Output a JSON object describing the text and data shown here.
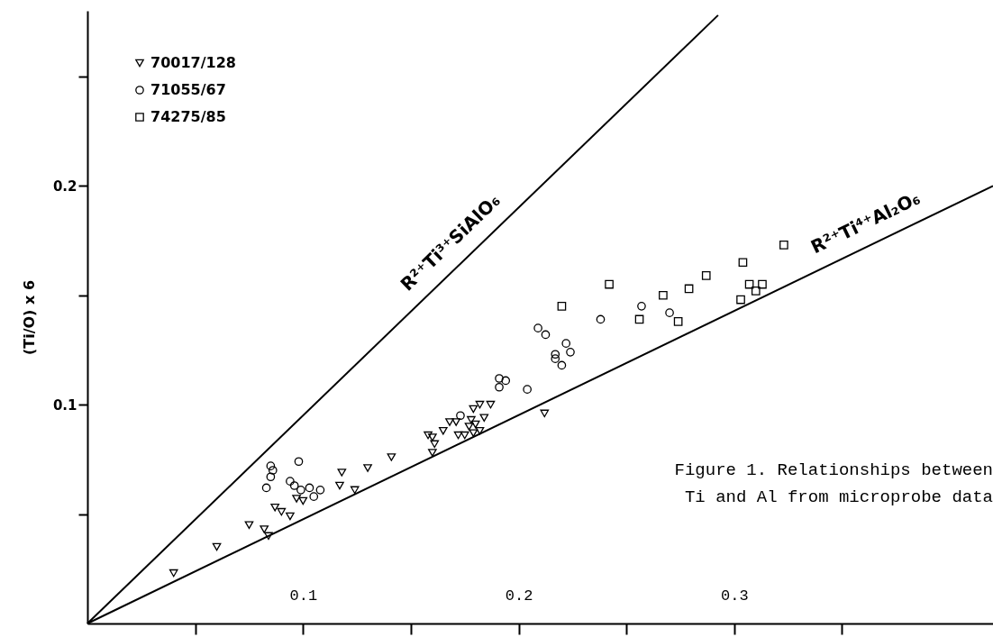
{
  "chart_data": {
    "type": "scatter",
    "ylabel": "(Ti/O) x 6",
    "xlim": [
      0,
      0.42
    ],
    "ylim": [
      0,
      0.28
    ],
    "xticks": [
      {
        "value": 0.05,
        "label": null
      },
      0.1,
      {
        "value": 0.15,
        "label": null
      },
      0.2,
      {
        "value": 0.25,
        "label": null
      },
      0.3,
      {
        "value": 0.35,
        "label": null
      }
    ],
    "yticks": [
      {
        "value": 0.05,
        "label": null
      },
      0.1,
      {
        "value": 0.15,
        "label": null
      },
      0.2,
      {
        "value": 0.25,
        "label": null
      }
    ],
    "legend": "top left",
    "grid": false,
    "series": [
      {
        "name": "70017/128",
        "color": "#000000",
        "marker": "triangle",
        "x": [
          0.04,
          0.06,
          0.075,
          0.082,
          0.084,
          0.087,
          0.09,
          0.094,
          0.097,
          0.1,
          0.117,
          0.124,
          0.118,
          0.13,
          0.141,
          0.16,
          0.158,
          0.16,
          0.161,
          0.165,
          0.168,
          0.171,
          0.179,
          0.182,
          0.187,
          0.184,
          0.178,
          0.18,
          0.177,
          0.179,
          0.172,
          0.175,
          0.182,
          0.212
        ],
        "values": [
          0.023,
          0.035,
          0.045,
          0.043,
          0.04,
          0.053,
          0.051,
          0.049,
          0.057,
          0.056,
          0.063,
          0.061,
          0.069,
          0.071,
          0.076,
          0.078,
          0.086,
          0.085,
          0.082,
          0.088,
          0.092,
          0.092,
          0.098,
          0.1,
          0.1,
          0.094,
          0.093,
          0.091,
          0.09,
          0.087,
          0.086,
          0.086,
          0.088,
          0.096
        ]
      },
      {
        "name": "71055/67",
        "color": "#000000",
        "marker": "circle",
        "x": [
          0.083,
          0.085,
          0.086,
          0.085,
          0.094,
          0.096,
          0.099,
          0.103,
          0.105,
          0.108,
          0.098,
          0.173,
          0.191,
          0.194,
          0.191,
          0.204,
          0.209,
          0.2125,
          0.222,
          0.224,
          0.217,
          0.217,
          0.22,
          0.238,
          0.257,
          0.27
        ],
        "values": [
          0.062,
          0.067,
          0.07,
          0.072,
          0.065,
          0.063,
          0.061,
          0.062,
          0.058,
          0.061,
          0.074,
          0.095,
          0.112,
          0.111,
          0.108,
          0.107,
          0.135,
          0.132,
          0.128,
          0.124,
          0.123,
          0.121,
          0.118,
          0.139,
          0.145,
          0.142
        ]
      },
      {
        "name": "74275/85",
        "color": "#000000",
        "marker": "square",
        "x": [
          0.22,
          0.242,
          0.256,
          0.267,
          0.274,
          0.279,
          0.287,
          0.304,
          0.307,
          0.31,
          0.313,
          0.303,
          0.323
        ],
        "values": [
          0.145,
          0.155,
          0.139,
          0.15,
          0.138,
          0.153,
          0.159,
          0.165,
          0.155,
          0.152,
          0.155,
          0.148,
          0.173
        ]
      },
      {
        "type": "line",
        "color": "#000000",
        "marker": "none",
        "x": [
          0,
          0.2925
        ],
        "values": [
          0,
          0.278
        ]
      },
      {
        "type": "line",
        "color": "#000000",
        "marker": "none",
        "x": [
          0,
          0.42
        ],
        "values": [
          0,
          0.2
        ]
      }
    ],
    "annotations": [
      "R²⁺Ti³⁺SiAlO₆",
      "R²⁺Ti⁴⁺Al₂O₆",
      "Figure 1.  Relationships between\nTi and Al from microprobe data"
    ]
  }
}
